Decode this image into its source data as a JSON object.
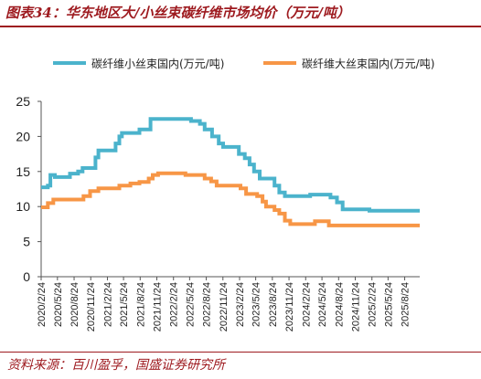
{
  "header": {
    "figure_title": "图表34：华东地区大/小丝束碳纤维市场均价（万元/吨）"
  },
  "footer": {
    "source": "资料来源：百川盈孚，国盛证券研究所"
  },
  "colors": {
    "accent": "#9e1b20",
    "series_small": "#4bb3cc",
    "series_large": "#f79646"
  },
  "chart_data": {
    "type": "line",
    "title": "",
    "xlabel": "",
    "ylabel": "",
    "ylim": [
      0,
      25
    ],
    "yticks": [
      0,
      5,
      10,
      15,
      20,
      25
    ],
    "xlim": [
      "2020-02-24",
      "2025-11-15"
    ],
    "xtick_labels": [
      "2020/2/24",
      "2020/5/24",
      "2020/8/24",
      "2020/11/24",
      "2021/2/24",
      "2021/5/24",
      "2021/8/24",
      "2021/11/24",
      "2022/2/24",
      "2022/5/24",
      "2022/8/24",
      "2022/11/24",
      "2023/2/24",
      "2023/5/24",
      "2023/8/24",
      "2023/11/24",
      "2024/2/24",
      "2024/5/24",
      "2024/8/24",
      "2024/11/24",
      "2025/2/24",
      "2025/5/24",
      "2025/8/24"
    ],
    "grid": false,
    "legend_position": "top",
    "series": [
      {
        "name": "碳纤维小丝束国内(万元/吨)",
        "points": [
          [
            "2020-02-24",
            12.75
          ],
          [
            "2020-04-01",
            13.0
          ],
          [
            "2020-04-15",
            14.5
          ],
          [
            "2020-05-10",
            14.2
          ],
          [
            "2020-08-01",
            14.7
          ],
          [
            "2020-09-15",
            15.0
          ],
          [
            "2020-10-10",
            15.5
          ],
          [
            "2020-12-20",
            17.0
          ],
          [
            "2021-01-05",
            18.0
          ],
          [
            "2021-04-10",
            19.0
          ],
          [
            "2021-05-01",
            20.0
          ],
          [
            "2021-05-15",
            20.5
          ],
          [
            "2021-08-20",
            21.0
          ],
          [
            "2021-10-20",
            22.5
          ],
          [
            "2022-02-01",
            22.5
          ],
          [
            "2022-06-01",
            22.2
          ],
          [
            "2022-07-20",
            21.8
          ],
          [
            "2022-08-15",
            21.0
          ],
          [
            "2022-09-25",
            20.0
          ],
          [
            "2022-11-01",
            19.0
          ],
          [
            "2022-11-25",
            18.5
          ],
          [
            "2023-02-20",
            17.5
          ],
          [
            "2023-03-25",
            16.9
          ],
          [
            "2023-04-20",
            16.0
          ],
          [
            "2023-05-15",
            15.0
          ],
          [
            "2023-06-15",
            14.0
          ],
          [
            "2023-09-05",
            13.0
          ],
          [
            "2023-10-01",
            12.0
          ],
          [
            "2023-11-01",
            11.5
          ],
          [
            "2024-03-20",
            11.7
          ],
          [
            "2024-07-10",
            11.3
          ],
          [
            "2024-08-15",
            10.6
          ],
          [
            "2024-09-15",
            9.6
          ],
          [
            "2025-02-10",
            9.4
          ],
          [
            "2025-11-15",
            9.4
          ]
        ]
      },
      {
        "name": "碳纤维大丝束国内(万元/吨)",
        "points": [
          [
            "2020-02-24",
            9.9
          ],
          [
            "2020-04-01",
            10.5
          ],
          [
            "2020-05-01",
            11.0
          ],
          [
            "2020-10-15",
            11.5
          ],
          [
            "2020-11-20",
            12.2
          ],
          [
            "2021-01-05",
            12.6
          ],
          [
            "2021-05-01",
            13.0
          ],
          [
            "2021-07-01",
            13.3
          ],
          [
            "2021-08-20",
            13.5
          ],
          [
            "2021-10-10",
            14.0
          ],
          [
            "2021-11-01",
            14.5
          ],
          [
            "2021-12-01",
            14.75
          ],
          [
            "2022-05-01",
            14.5
          ],
          [
            "2022-08-15",
            14.0
          ],
          [
            "2022-09-20",
            13.6
          ],
          [
            "2022-10-20",
            13.0
          ],
          [
            "2023-03-01",
            12.6
          ],
          [
            "2023-04-01",
            11.8
          ],
          [
            "2023-06-01",
            11.5
          ],
          [
            "2023-07-01",
            10.7
          ],
          [
            "2023-07-20",
            10.0
          ],
          [
            "2023-09-05",
            9.5
          ],
          [
            "2023-10-01",
            9.0
          ],
          [
            "2023-11-01",
            8.0
          ],
          [
            "2023-12-01",
            7.5
          ],
          [
            "2024-04-15",
            7.9
          ],
          [
            "2024-07-01",
            7.3
          ],
          [
            "2025-11-15",
            7.3
          ]
        ]
      }
    ]
  }
}
